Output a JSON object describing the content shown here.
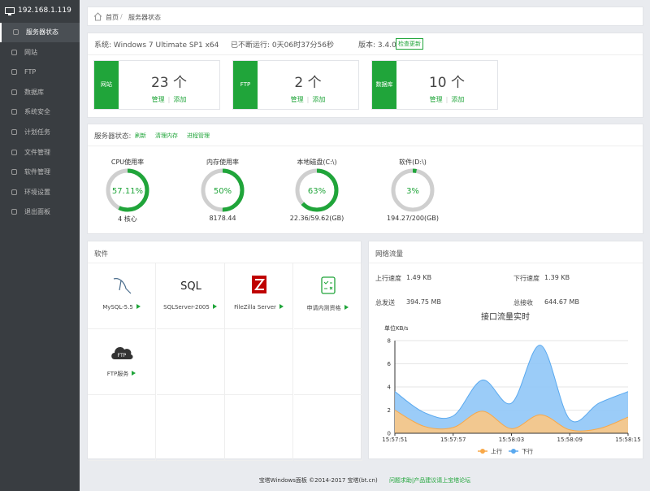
{
  "sidebar": {
    "host": "192.168.1.119",
    "menu": [
      "服务器状态",
      "网站",
      "FTP",
      "数据库",
      "系统安全",
      "计划任务",
      "文件管理",
      "软件管理",
      "环境设置",
      "退出面板"
    ]
  },
  "breadcrumb": [
    "首页",
    "服务器状态"
  ],
  "system": {
    "os": "系统: Windows 7 Ultimate SP1 x64",
    "uptime": "已不断运行: 0天06时37分56秒",
    "version": "版本: 3.4.0",
    "update": "检查更新"
  },
  "cards": [
    {
      "label": "网站",
      "count": "23 个",
      "links": [
        "管理",
        "添加"
      ]
    },
    {
      "label": "FTP",
      "count": "2 个",
      "links": [
        "管理",
        "添加"
      ]
    },
    {
      "label": "数据库",
      "count": "10 个",
      "links": [
        "管理",
        "添加"
      ]
    }
  ],
  "status": {
    "title": "服务器状态:",
    "actions": [
      "刷新",
      "清理内存",
      "进程管理"
    ],
    "gauges": [
      {
        "name": "CPU使用率",
        "value": 57.11,
        "value_label": "57.11%",
        "detail": "4 核心"
      },
      {
        "name": "内存使用率",
        "value": 50,
        "value_label": "50%",
        "detail": "8178.44"
      },
      {
        "name": "本地磁盘(C:\\)",
        "value": 63,
        "value_label": "63%",
        "detail": "22.36/59.62(GB)"
      },
      {
        "name": "软件(D:\\)",
        "value": 3,
        "value_label": "3%",
        "detail": "194.27/200(GB)"
      }
    ]
  },
  "software": {
    "title": "软件",
    "items": [
      {
        "name": "MySQL-5.5"
      },
      {
        "name": "SQLServer-2005",
        "logo": "SQL"
      },
      {
        "name": "FileZilla Server"
      },
      {
        "name": "申请内测资格"
      },
      {
        "name": "FTP服务",
        "logo": "FTP"
      }
    ]
  },
  "network": {
    "title": "网络流量",
    "stats": [
      {
        "label": "上行速度",
        "value": "1.49 KB"
      },
      {
        "label": "下行速度",
        "value": "1.39 KB"
      },
      {
        "label": "总发送",
        "value": "394.75 MB"
      },
      {
        "label": "总接收",
        "value": "644.67 MB"
      }
    ]
  },
  "chart_data": {
    "type": "area",
    "title": "接口流量实时",
    "ylabel": "单位KB/s",
    "categories": [
      "15:57:51",
      null,
      "15:57:57",
      null,
      "15:58:03",
      null,
      "15:58:09",
      null,
      "15:58:15"
    ],
    "series": [
      {
        "name": "上行",
        "color": "#f8a848",
        "fill": "#fcc884",
        "values": [
          2.0,
          0.6,
          0.5,
          1.9,
          0.4,
          1.6,
          0.3,
          0.4,
          1.4
        ]
      },
      {
        "name": "下行",
        "color": "#5aa9ef",
        "fill": "#90c6f7",
        "values": [
          3.6,
          1.8,
          1.5,
          4.6,
          2.6,
          7.6,
          1.2,
          2.6,
          3.6
        ]
      }
    ],
    "ylim": [
      0,
      8
    ],
    "yticks": [
      0,
      2,
      4,
      6,
      8
    ],
    "grid": true,
    "legend": "bottom"
  },
  "footer": {
    "copyright": "宝塔Windows面板 ©2014-2017 宝塔(bt.cn)",
    "link": "问题求助|产品建议请上宝塔论坛"
  }
}
